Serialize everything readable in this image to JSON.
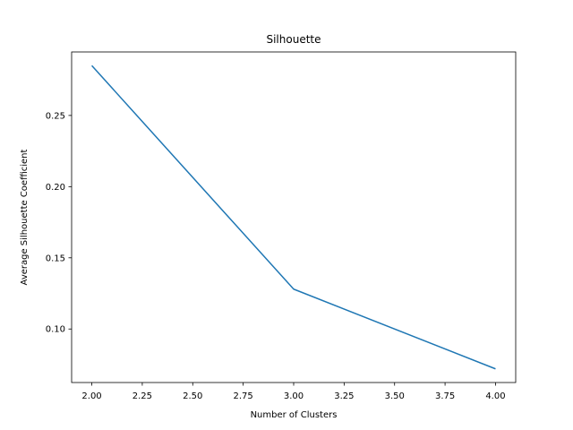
{
  "chart_data": {
    "type": "line",
    "title": "Silhouette",
    "xlabel": "Number of Clusters",
    "ylabel": "Average Silhouette Coefficient",
    "x": [
      2,
      3,
      4
    ],
    "y": [
      0.285,
      0.128,
      0.072
    ],
    "xlim": [
      1.9,
      4.1
    ],
    "ylim": [
      0.0624,
      0.2946
    ],
    "xticks": [
      2.0,
      2.25,
      2.5,
      2.75,
      3.0,
      3.25,
      3.5,
      3.75,
      4.0
    ],
    "xtick_labels": [
      "2.00",
      "2.25",
      "2.50",
      "2.75",
      "3.00",
      "3.25",
      "3.50",
      "3.75",
      "4.00"
    ],
    "yticks": [
      0.1,
      0.15,
      0.2,
      0.25
    ],
    "ytick_labels": [
      "0.10",
      "0.15",
      "0.20",
      "0.25"
    ],
    "grid": false,
    "line_color": "#1f77b4"
  }
}
